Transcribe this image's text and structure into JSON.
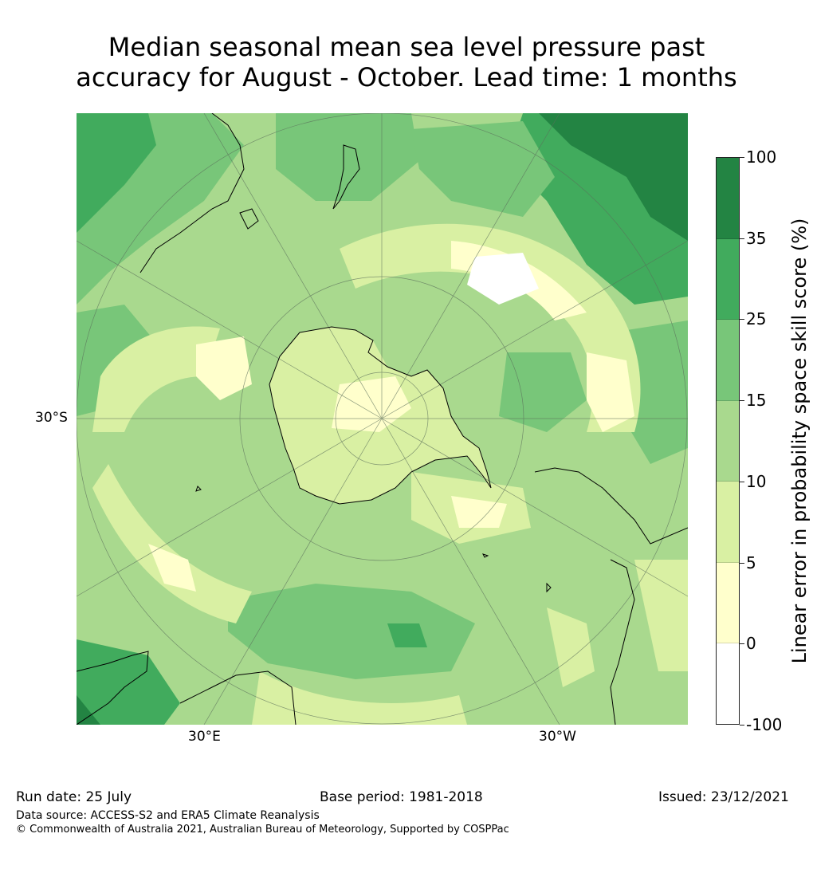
{
  "title": {
    "line1": "Median seasonal mean sea level pressure past",
    "line2": "accuracy for August - October. Lead time: 1 months"
  },
  "map": {
    "projection": "south polar stereographic",
    "labels": {
      "lat": "30°S",
      "lon_east": "30°E",
      "lon_west": "30°W"
    },
    "colors": {
      "ocean_base": "#a9d98e",
      "very_low": "#ffffcc",
      "low": "#d9f0a3",
      "mid": "#a9d98e",
      "mid_high": "#78c679",
      "high": "#41ab5d",
      "very_high": "#238443",
      "coast": "#000000",
      "grid": "#5a6e5a"
    }
  },
  "colorbar": {
    "title": "Linear error in probability space skill score (%)",
    "ticks": [
      "100",
      "35",
      "25",
      "15",
      "10",
      "5",
      "0",
      "-100"
    ],
    "colors": [
      "#238443",
      "#41ab5d",
      "#78c679",
      "#a9d98e",
      "#d9f0a3",
      "#ffffcc",
      "#ffffff"
    ]
  },
  "footer": {
    "run_date": "Run date: 25 July",
    "base_period": "Base period: 1981-2018",
    "issued": "Issued: 23/12/2021",
    "data_source": "Data source: ACCESS-S2 and ERA5 Climate Reanalysis",
    "copyright": "© Commonwealth of Australia 2021, Australian Bureau of Meteorology, Supported by COSPPac"
  }
}
